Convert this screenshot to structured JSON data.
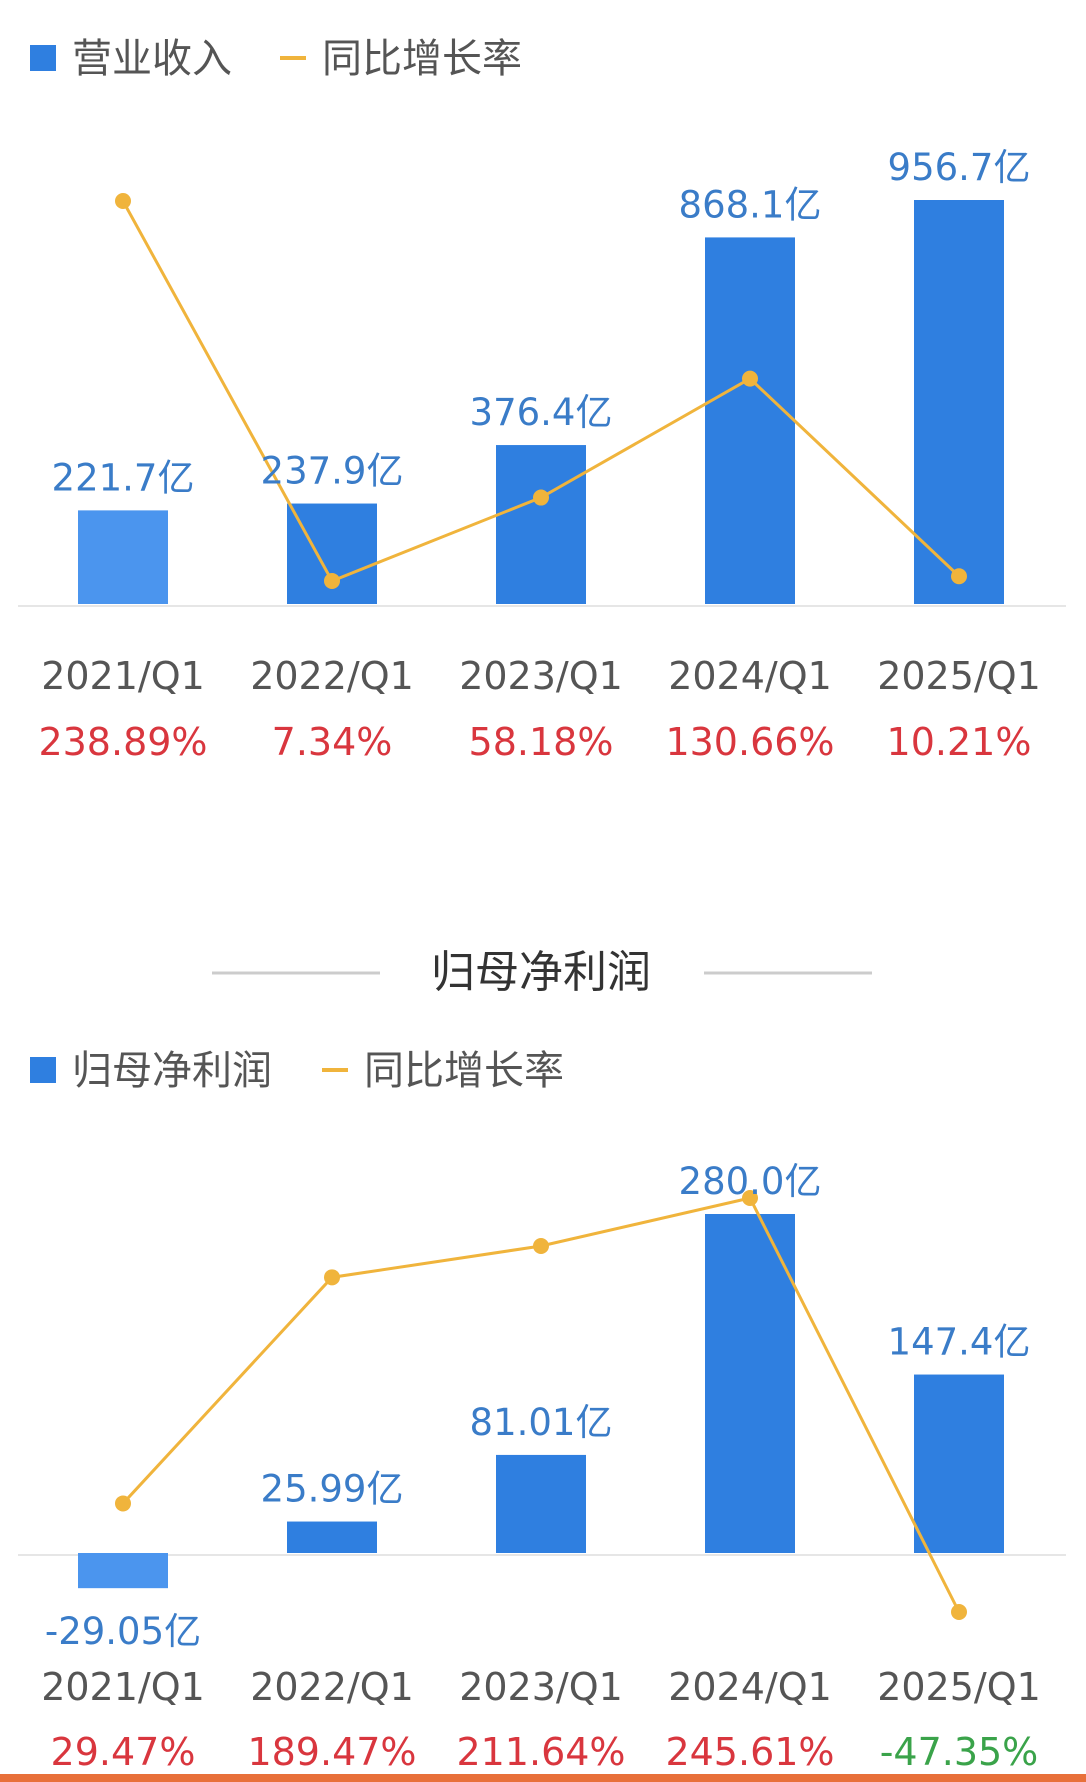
{
  "colors": {
    "bar": "#2f7fe0",
    "bar_light": "#4b95ee",
    "line": "#f0b43c",
    "bar_label": "#3a7cc8",
    "rate_positive": "#d9363e",
    "rate_negative": "#3aa34a",
    "axis": "#e6e6e6",
    "section_rule": "#cccccc"
  },
  "section_title": "归母净利润",
  "chart_data": [
    {
      "type": "bar",
      "legend": {
        "bar_label": "营业收入",
        "line_label": "同比增长率",
        "placement": "top-left"
      },
      "categories": [
        "2021/Q1",
        "2022/Q1",
        "2023/Q1",
        "2024/Q1",
        "2025/Q1"
      ],
      "series": [
        {
          "name": "营业收入",
          "type": "bar",
          "unit": "亿",
          "values": [
            221.7,
            237.9,
            376.4,
            868.1,
            956.7
          ]
        },
        {
          "name": "同比增长率",
          "type": "line",
          "unit": "%",
          "values": [
            238.89,
            7.34,
            58.18,
            130.66,
            10.21
          ]
        }
      ],
      "bar_labels": [
        "221.7亿",
        "237.9亿",
        "376.4亿",
        "868.1亿",
        "956.7亿"
      ],
      "rate_labels": [
        "238.89%",
        "7.34%",
        "58.18%",
        "130.66%",
        "10.21%"
      ],
      "bar_ylim": [
        0,
        956.7
      ],
      "line_ylim": [
        0,
        238.89
      ],
      "grid": false
    },
    {
      "type": "bar",
      "legend": {
        "bar_label": "归母净利润",
        "line_label": "同比增长率",
        "placement": "top-left"
      },
      "categories": [
        "2021/Q1",
        "2022/Q1",
        "2023/Q1",
        "2024/Q1",
        "2025/Q1"
      ],
      "series": [
        {
          "name": "归母净利润",
          "type": "bar",
          "unit": "亿",
          "values": [
            -29.05,
            25.99,
            81.01,
            280.0,
            147.4
          ]
        },
        {
          "name": "同比增长率",
          "type": "line",
          "unit": "%",
          "values": [
            29.47,
            189.47,
            211.64,
            245.61,
            -47.35
          ]
        }
      ],
      "bar_labels": [
        "-29.05亿",
        "25.99亿",
        "81.01亿",
        "280.0亿",
        "147.4亿"
      ],
      "rate_labels": [
        "29.47%",
        "189.47%",
        "211.64%",
        "245.61%",
        "-47.35%"
      ],
      "bar_ylim": [
        -29.05,
        280.0
      ],
      "line_ylim": [
        -47.35,
        245.61
      ],
      "grid": false
    }
  ]
}
